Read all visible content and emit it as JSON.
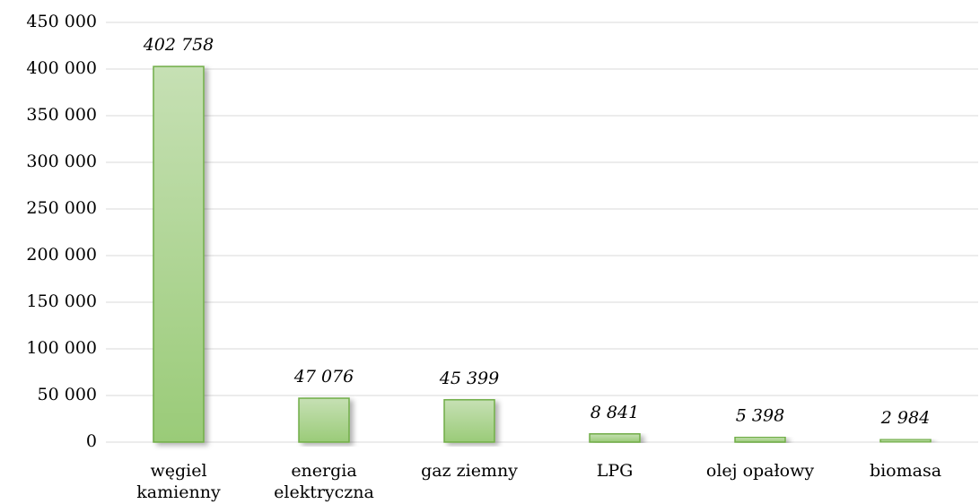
{
  "chart_data": {
    "type": "bar",
    "categories": [
      "węgiel kamienny",
      "energia elektryczna",
      "gaz ziemny",
      "LPG",
      "olej opałowy",
      "biomasa"
    ],
    "values": [
      402758,
      47076,
      45399,
      8841,
      5398,
      2984
    ],
    "value_labels": [
      "402 758",
      "47 076",
      "45 399",
      "8 841",
      "5 398",
      "2 984"
    ],
    "color": "#a9d18e",
    "ylim": [
      0,
      450000
    ],
    "yticks": [
      0,
      {
        "value": 50000,
        "label": "50 000"
      },
      {
        "value": 100000,
        "label": "100 000"
      },
      {
        "value": 150000,
        "label": "150 000"
      },
      {
        "value": 200000,
        "label": "200 000"
      },
      {
        "value": 250000,
        "label": "250 000"
      },
      {
        "value": 300000,
        "label": "300 000"
      },
      {
        "value": 350000,
        "label": "350 000"
      },
      {
        "value": 400000,
        "label": "400 000"
      },
      {
        "value": 450000,
        "label": "450 000"
      }
    ],
    "grid": true
  }
}
